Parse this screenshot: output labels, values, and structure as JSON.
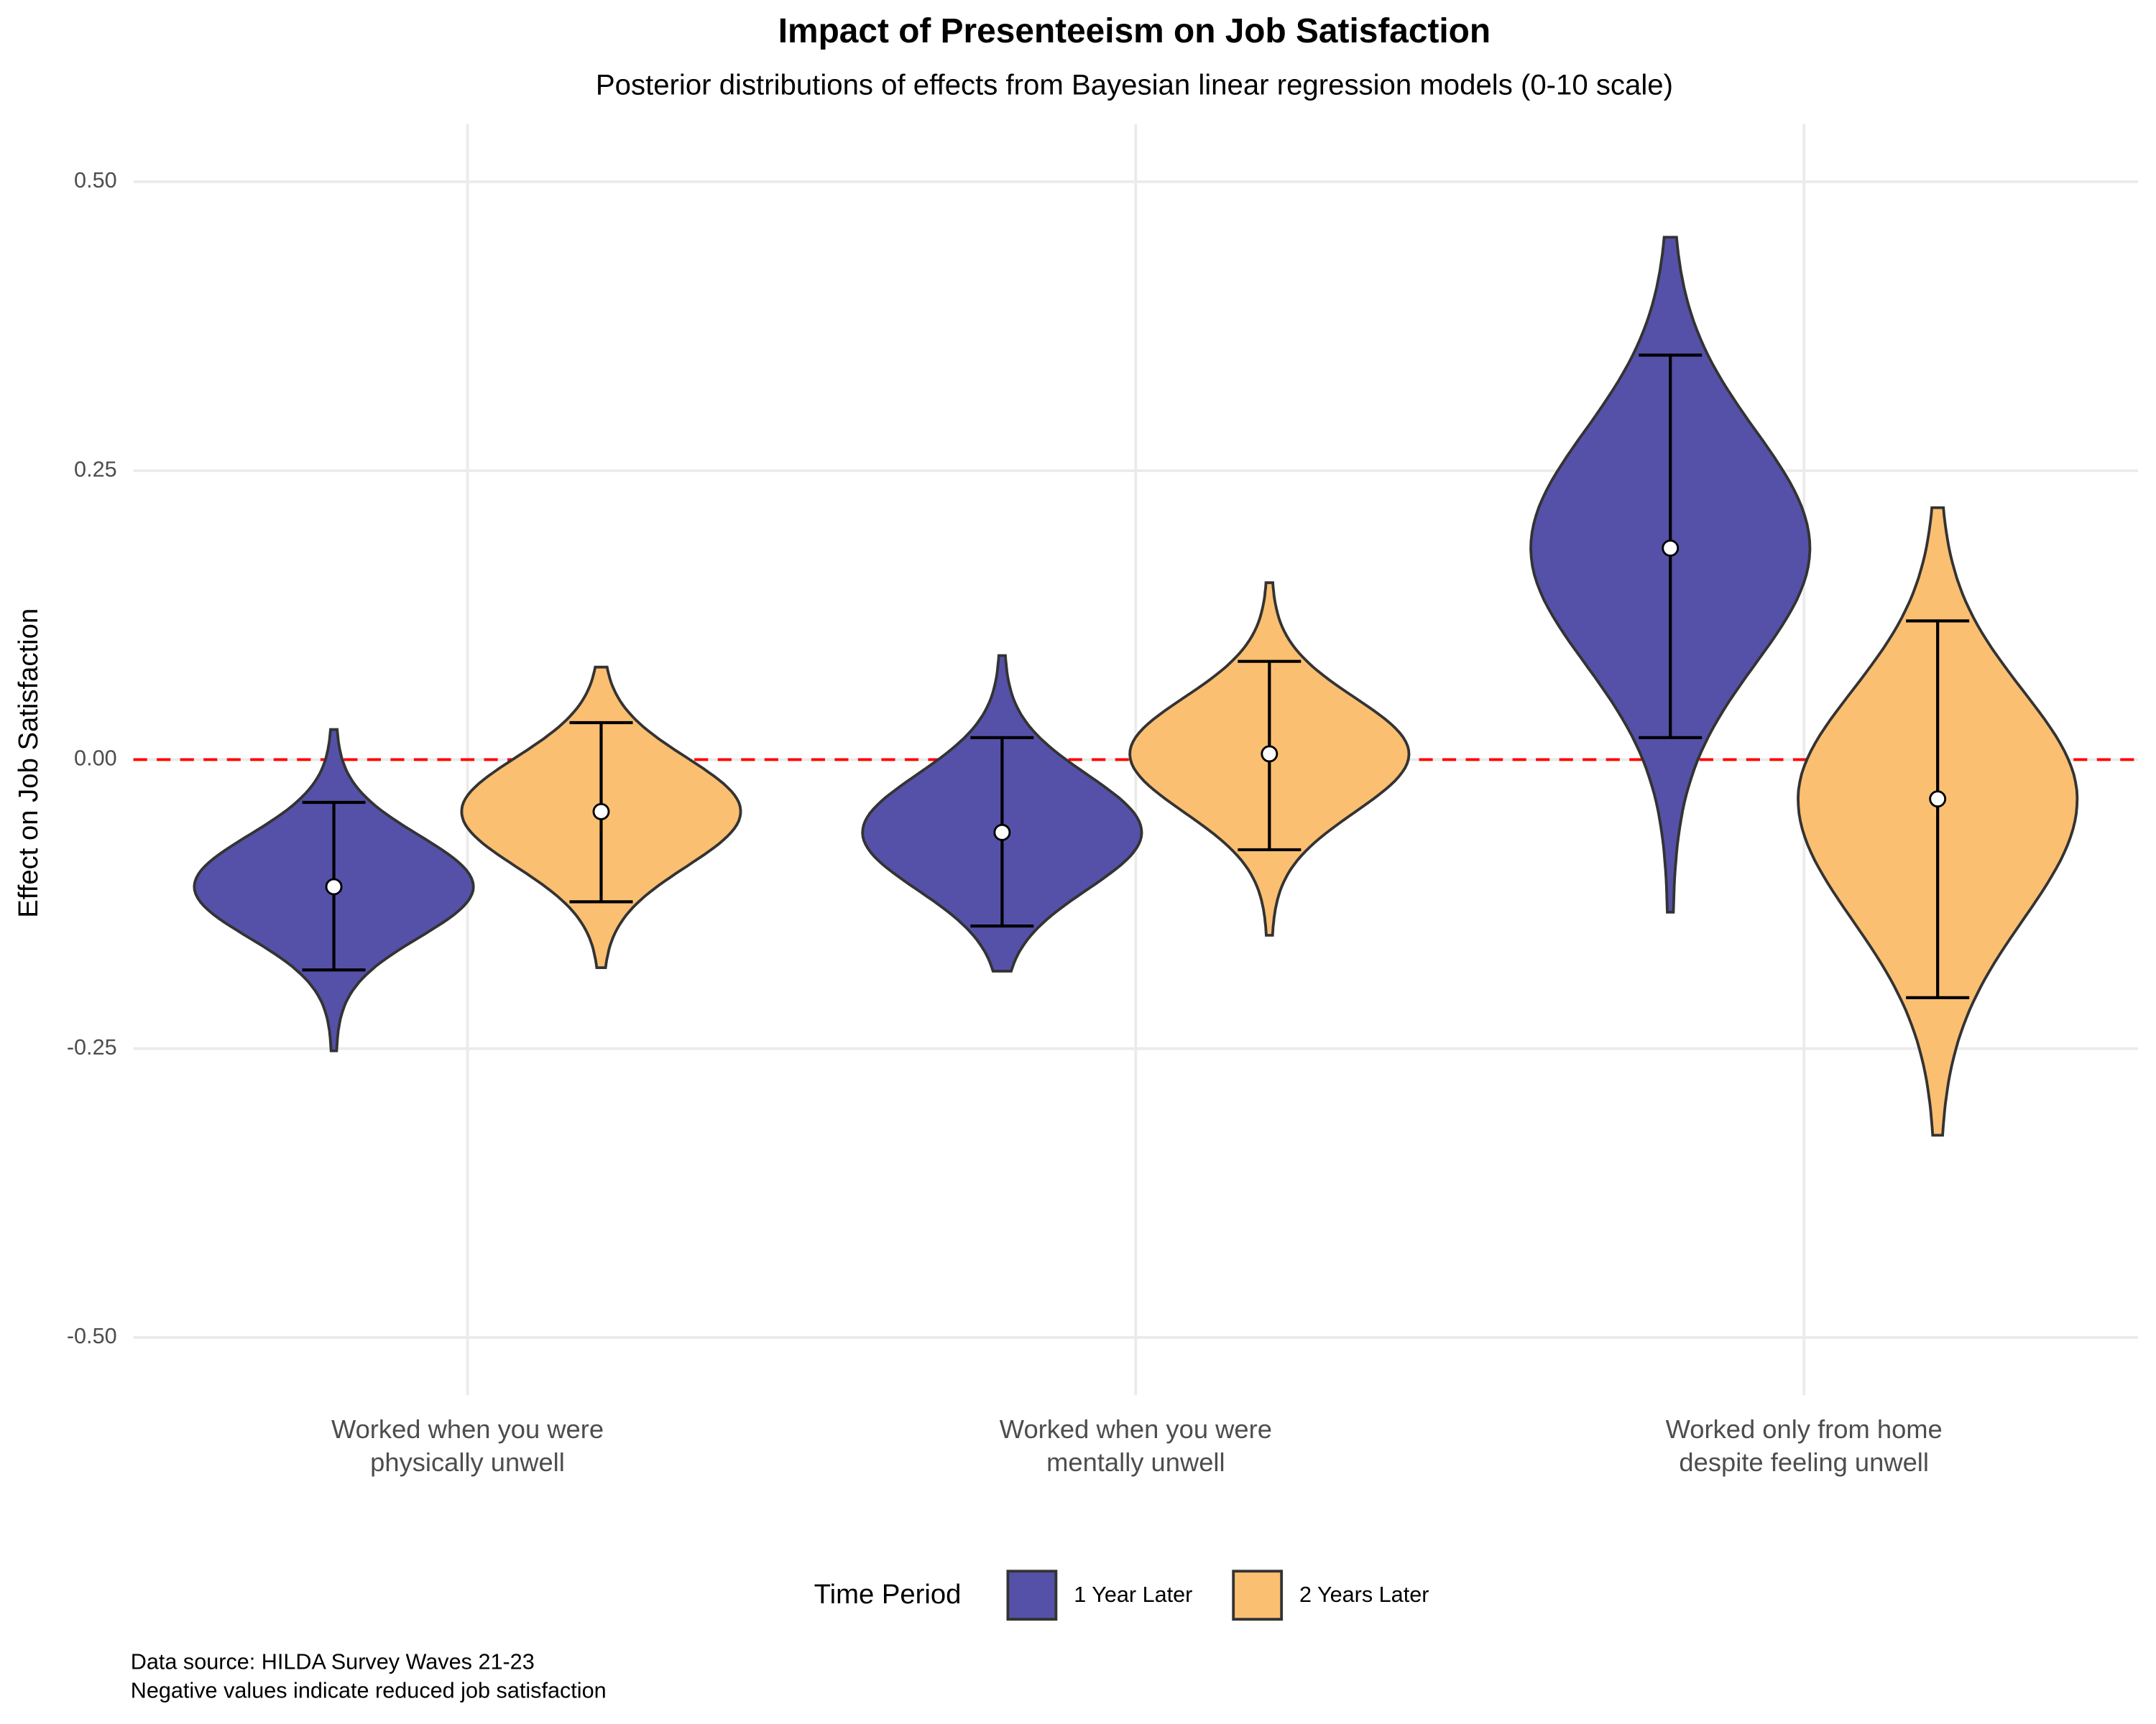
{
  "chart_data": {
    "type": "violin",
    "title": "Impact of Presenteeism on Job Satisfaction",
    "subtitle": "Posterior distributions of effects from Bayesian linear regression models (0-10 scale)",
    "y_label": "Effect on Job Satisfaction",
    "categories": [
      "Worked when you were\nphysically unwell",
      "Worked when you were\nmentally unwell",
      "Worked only from home\ndespite feeling unwell"
    ],
    "series": [
      {
        "name": "1 Year Later",
        "color": "#5551a9",
        "median": [
          -0.11,
          -0.063,
          0.183
        ],
        "ci_low": [
          -0.182,
          -0.144,
          0.019
        ],
        "ci_high": [
          -0.037,
          0.019,
          0.35
        ],
        "min": [
          -0.252,
          -0.183,
          -0.132
        ],
        "max": [
          0.026,
          0.09,
          0.452
        ]
      },
      {
        "name": "2 Years Later",
        "color": "#fbbf72",
        "median": [
          -0.045,
          0.005,
          -0.034
        ],
        "ci_low": [
          -0.123,
          -0.078,
          -0.206
        ],
        "ci_high": [
          0.032,
          0.085,
          0.12
        ],
        "min": [
          -0.18,
          -0.152,
          -0.325
        ],
        "max": [
          0.08,
          0.153,
          0.218
        ]
      }
    ],
    "ylim": [
      -0.55,
      0.55
    ],
    "yticks": [
      {
        "value": -0.5,
        "label": "-0.50"
      },
      {
        "value": -0.25,
        "label": "-0.25"
      },
      {
        "value": 0,
        "label": "0.00"
      },
      {
        "value": 0.25,
        "label": "0.25"
      },
      {
        "value": 0.5,
        "label": "0.50"
      }
    ],
    "reference_line": 0,
    "reference_line_color": "#ff0000",
    "grid": true,
    "legend_title": "Time Period",
    "legend_position": "bottom",
    "caption": [
      "Data source: HILDA Survey Waves 21-23",
      "Negative values indicate reduced job satisfaction"
    ]
  }
}
